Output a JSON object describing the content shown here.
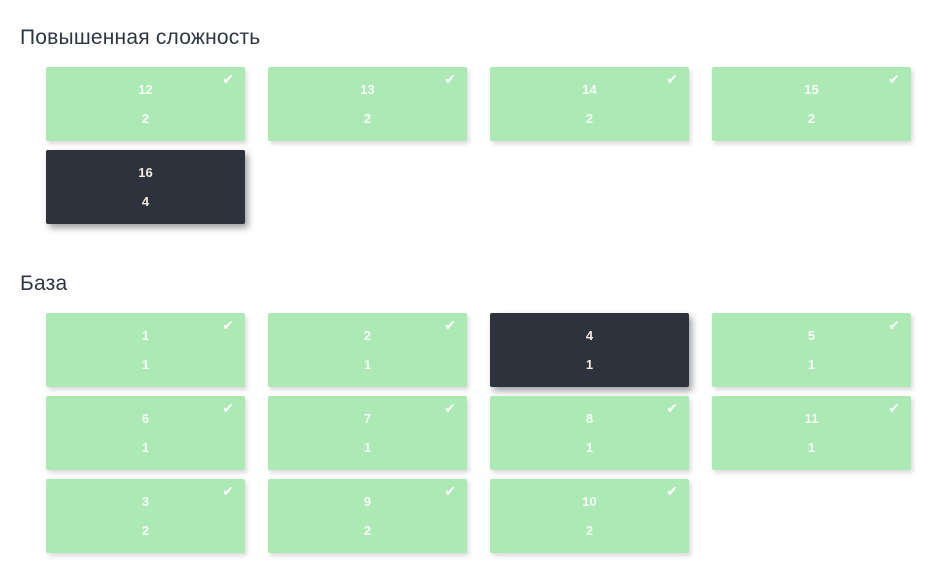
{
  "colors": {
    "page_bg": "#ffffff",
    "card_done_bg": "#ace9b4",
    "card_active_bg": "#2d323c",
    "title_color": "#2f3640",
    "check_color": "#ffffff"
  },
  "icons": {
    "check": "✔"
  },
  "sections": [
    {
      "id": "advanced",
      "title": "Повышенная сложность",
      "cards": [
        {
          "number": "12",
          "count": "2",
          "state": "done"
        },
        {
          "number": "13",
          "count": "2",
          "state": "done"
        },
        {
          "number": "14",
          "count": "2",
          "state": "done"
        },
        {
          "number": "15",
          "count": "2",
          "state": "done"
        },
        {
          "number": "16",
          "count": "4",
          "state": "active"
        }
      ]
    },
    {
      "id": "base",
      "title": "База",
      "cards": [
        {
          "number": "1",
          "count": "1",
          "state": "done"
        },
        {
          "number": "2",
          "count": "1",
          "state": "done"
        },
        {
          "number": "4",
          "count": "1",
          "state": "active"
        },
        {
          "number": "5",
          "count": "1",
          "state": "done"
        },
        {
          "number": "6",
          "count": "1",
          "state": "done"
        },
        {
          "number": "7",
          "count": "1",
          "state": "done"
        },
        {
          "number": "8",
          "count": "1",
          "state": "done"
        },
        {
          "number": "11",
          "count": "1",
          "state": "done"
        },
        {
          "number": "3",
          "count": "2",
          "state": "done"
        },
        {
          "number": "9",
          "count": "2",
          "state": "done"
        },
        {
          "number": "10",
          "count": "2",
          "state": "done"
        }
      ]
    }
  ]
}
